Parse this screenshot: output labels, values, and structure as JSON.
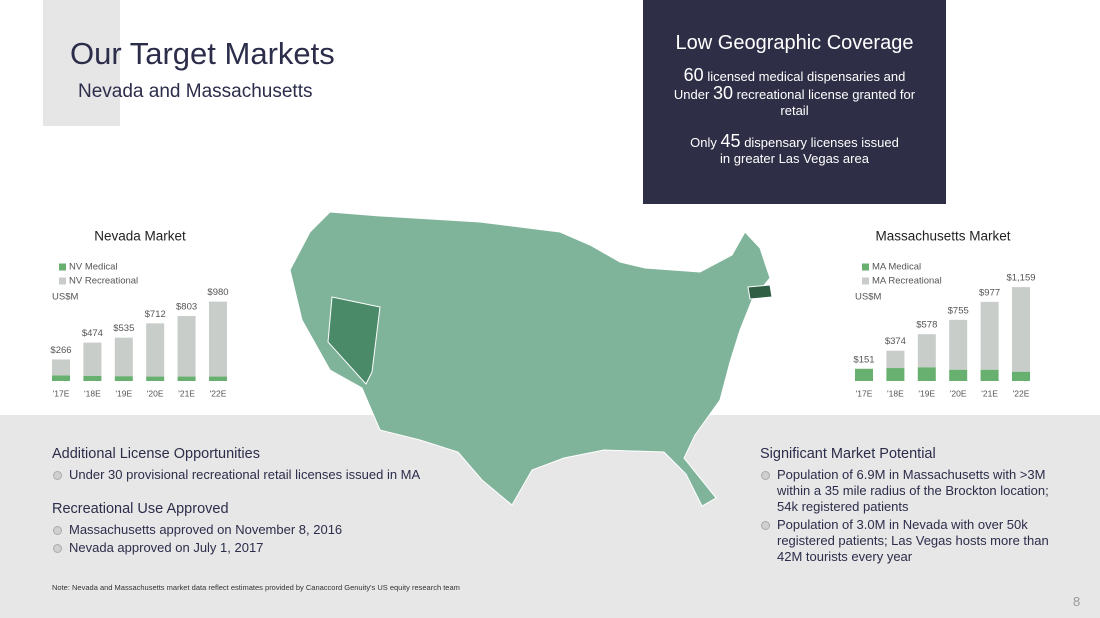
{
  "header": {
    "title": "Our Target Markets",
    "subtitle": "Nevada and Massachusetts"
  },
  "callout": {
    "title": "Low Geographic Coverage",
    "blocks": [
      {
        "number": 60,
        "text": "licensed medical dispensaries and"
      },
      {
        "prefix": "Under",
        "number": 30,
        "text": "recreational license granted for retail"
      },
      {
        "prefix": "Only",
        "number": 45,
        "text": "dispensary licenses issued",
        "text2": "in greater Las Vegas area"
      }
    ]
  },
  "chart_data": [
    {
      "type": "bar",
      "stacked": true,
      "title": "Nevada Market",
      "unit": "US$M",
      "categories": [
        "'17E",
        "'18E",
        "'19E",
        "'20E",
        "'21E",
        "'22E"
      ],
      "series": [
        {
          "name": "NV Medical",
          "color": "#67b06f",
          "values": [
            70,
            65,
            60,
            55,
            55,
            55
          ]
        },
        {
          "name": "NV Recreational",
          "color": "#c8cdca",
          "values": [
            196,
            409,
            475,
            657,
            748,
            925
          ]
        }
      ],
      "totals": [
        266,
        474,
        535,
        712,
        803,
        980
      ],
      "total_labels": [
        "$266",
        "$474",
        "$535",
        "$712",
        "$803",
        "$980"
      ]
    },
    {
      "type": "bar",
      "stacked": true,
      "title": "Massachusetts Market",
      "unit": "US$M",
      "categories": [
        "'17E",
        "'18E",
        "'19E",
        "'20E",
        "'21E",
        "'22E"
      ],
      "series": [
        {
          "name": "MA Medical",
          "color": "#67b06f",
          "values": [
            151,
            160,
            170,
            140,
            140,
            115
          ]
        },
        {
          "name": "MA Recreational",
          "color": "#c8cdca",
          "values": [
            0,
            214,
            408,
            615,
            837,
            1044
          ]
        }
      ],
      "totals": [
        151,
        374,
        578,
        755,
        977,
        1159
      ],
      "total_labels": [
        "$151",
        "$374",
        "$578",
        "$755",
        "$977",
        "$1,159"
      ]
    }
  ],
  "left_sections": [
    {
      "heading": "Additional License Opportunities",
      "bullets": [
        "Under 30 provisional recreational retail licenses issued in MA"
      ]
    },
    {
      "heading": "Recreational Use Approved",
      "bullets": [
        "Massachusetts approved on November 8, 2016",
        "Nevada approved on July 1, 2017"
      ]
    }
  ],
  "right_section": {
    "heading": "Significant Market Potential",
    "bullets": [
      "Population of 6.9M in Massachusetts with >3M within a 35 mile radius of the Brockton location; 54k registered patients",
      "Population of 3.0M in Nevada with over 50k registered patients; Las Vegas hosts more than 42M tourists every year"
    ]
  },
  "note": "Note: Nevada and Massachusetts market data reflect estimates provided by Canaccord Genuity's US equity research team",
  "page_number": 8
}
